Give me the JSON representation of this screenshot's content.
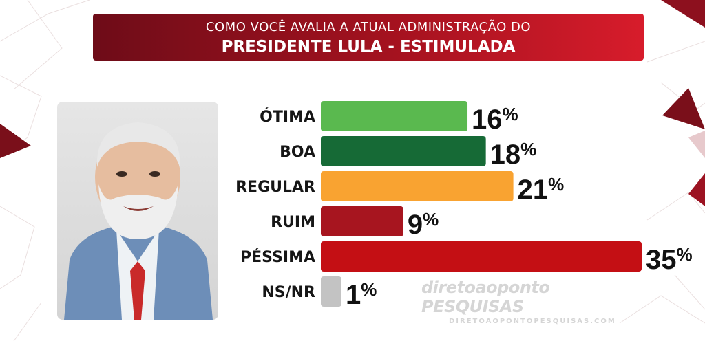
{
  "header": {
    "subtitle": "COMO VOCÊ AVALIA A ATUAL ADMINISTRAÇÃO DO",
    "title": "PRESIDENTE LULA - ESTIMULADA"
  },
  "chart_data": {
    "type": "bar",
    "orientation": "horizontal",
    "title": "PRESIDENTE LULA - ESTIMULADA",
    "subtitle": "COMO VOCÊ AVALIA A ATUAL ADMINISTRAÇÃO DO",
    "categories": [
      "ÓTIMA",
      "BOA",
      "REGULAR",
      "RUIM",
      "PÉSSIMA",
      "NS/NR"
    ],
    "values": [
      16,
      18,
      21,
      9,
      35,
      1
    ],
    "value_labels": [
      "16%",
      "18%",
      "21%",
      "9%",
      "35%",
      "1%"
    ],
    "colors": [
      "#5ab94f",
      "#166a36",
      "#f9a331",
      "#a7151f",
      "#c40f14",
      "#c3c3c3"
    ],
    "unit": "%",
    "xlim": [
      0,
      35
    ],
    "grid": false
  },
  "watermark": {
    "brand": "diretoaoponto",
    "tag": "PESQUISAS",
    "url": "DIRETOAOPONTOPESQUISAS.COM"
  },
  "colors": {
    "banner_dark": "#6e0c18",
    "banner_light": "#d71c2b",
    "accent": "#8b0f1c"
  }
}
